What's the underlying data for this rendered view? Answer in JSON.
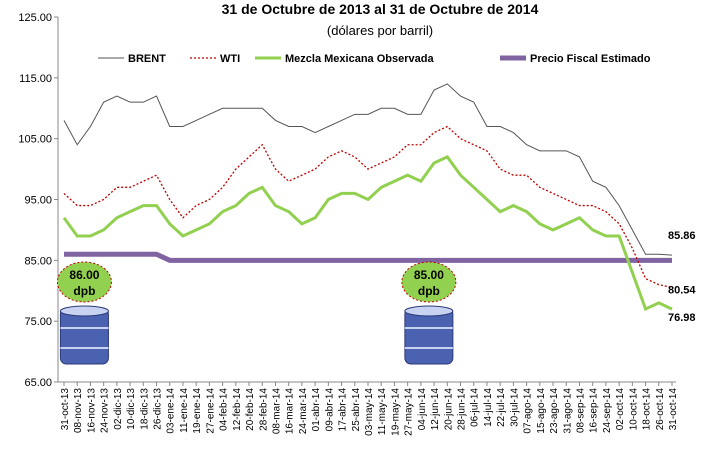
{
  "chart_data": {
    "type": "line",
    "title": "31 de Octubre de 2013 al 31 de Octubre de 2014",
    "subtitle": "(dólares por barril)",
    "categories": [
      "31-oct-13",
      "08-nov-13",
      "16-nov-13",
      "24-nov-13",
      "02-dic-13",
      "10-dic-13",
      "18-dic-13",
      "26-dic-13",
      "03-ene-14",
      "11-ene-14",
      "19-ene-14",
      "27-ene-14",
      "04-feb-14",
      "12-feb-14",
      "20-feb-14",
      "28-feb-14",
      "08-mar-14",
      "16-mar-14",
      "24-mar-14",
      "01-abr-14",
      "09-abr-14",
      "17-abr-14",
      "25-abr-14",
      "03-may-14",
      "11-may-14",
      "19-may-14",
      "27-may-14",
      "04-jun-14",
      "12-jun-14",
      "20-jun-14",
      "28-jun-14",
      "06-jul-14",
      "14-jul-14",
      "22-jul-14",
      "30-jul-14",
      "07-ago-14",
      "15-ago-14",
      "23-ago-14",
      "31-ago-14",
      "08-sep-14",
      "16-sep-14",
      "24-sep-14",
      "02-oct-14",
      "10-oct-14",
      "18-oct-14",
      "26-oct-14",
      "31-oct-14"
    ],
    "series": [
      {
        "name": "BRENT",
        "color": "#555555",
        "style": "thin",
        "values": [
          108,
          104,
          107,
          111,
          112,
          111,
          111,
          112,
          107,
          107,
          108,
          109,
          110,
          110,
          110,
          110,
          108,
          107,
          107,
          106,
          107,
          108,
          109,
          109,
          110,
          110,
          109,
          109,
          113,
          114,
          112,
          111,
          107,
          107,
          106,
          104,
          103,
          103,
          103,
          102,
          98,
          97,
          94,
          90,
          86,
          86,
          85.86
        ]
      },
      {
        "name": "WTI",
        "color": "#c00000",
        "style": "dotted",
        "values": [
          96,
          94,
          94,
          95,
          97,
          97,
          98,
          99,
          95,
          92,
          94,
          95,
          97,
          100,
          102,
          104,
          100,
          98,
          99,
          100,
          102,
          103,
          102,
          100,
          101,
          102,
          104,
          104,
          106,
          107,
          105,
          104,
          103,
          100,
          99,
          99,
          97,
          96,
          95,
          94,
          94,
          93,
          91,
          87,
          82,
          81,
          80.54
        ]
      },
      {
        "name": "Mezcla Mexicana Observada",
        "color": "#92d050",
        "style": "thick",
        "values": [
          92,
          89,
          89,
          90,
          92,
          93,
          94,
          94,
          91,
          89,
          90,
          91,
          93,
          94,
          96,
          97,
          94,
          93,
          91,
          92,
          95,
          96,
          96,
          95,
          97,
          98,
          99,
          98,
          101,
          102,
          99,
          97,
          95,
          93,
          94,
          93,
          91,
          90,
          91,
          92,
          90,
          89,
          89,
          83,
          77,
          78,
          76.98
        ]
      },
      {
        "name": "Precio Fiscal Estimado",
        "color": "#8064a2",
        "style": "bar",
        "values": [
          86,
          86,
          86,
          86,
          86,
          86,
          86,
          86,
          85,
          85,
          85,
          85,
          85,
          85,
          85,
          85,
          85,
          85,
          85,
          85,
          85,
          85,
          85,
          85,
          85,
          85,
          85,
          85,
          85,
          85,
          85,
          85,
          85,
          85,
          85,
          85,
          85,
          85,
          85,
          85,
          85,
          85,
          85,
          85,
          85,
          85,
          85
        ]
      }
    ],
    "end_labels": [
      0,
      1,
      2
    ],
    "annotations": [
      {
        "value": "86.00",
        "unit": "dpb",
        "at": 2
      },
      {
        "value": "85.00",
        "unit": "dpb",
        "at": 27
      }
    ],
    "ylim": [
      65,
      125
    ],
    "yticks": [
      {
        "value": 65,
        "label": "65.00"
      },
      {
        "value": 75,
        "label": "75.00"
      },
      {
        "value": 85,
        "label": "85.00"
      },
      {
        "value": 95,
        "label": "95.00"
      },
      {
        "value": 105,
        "label": "105.00"
      },
      {
        "value": 115,
        "label": "115.00"
      },
      {
        "value": 125,
        "label": "125.00"
      }
    ],
    "legend": "top"
  }
}
